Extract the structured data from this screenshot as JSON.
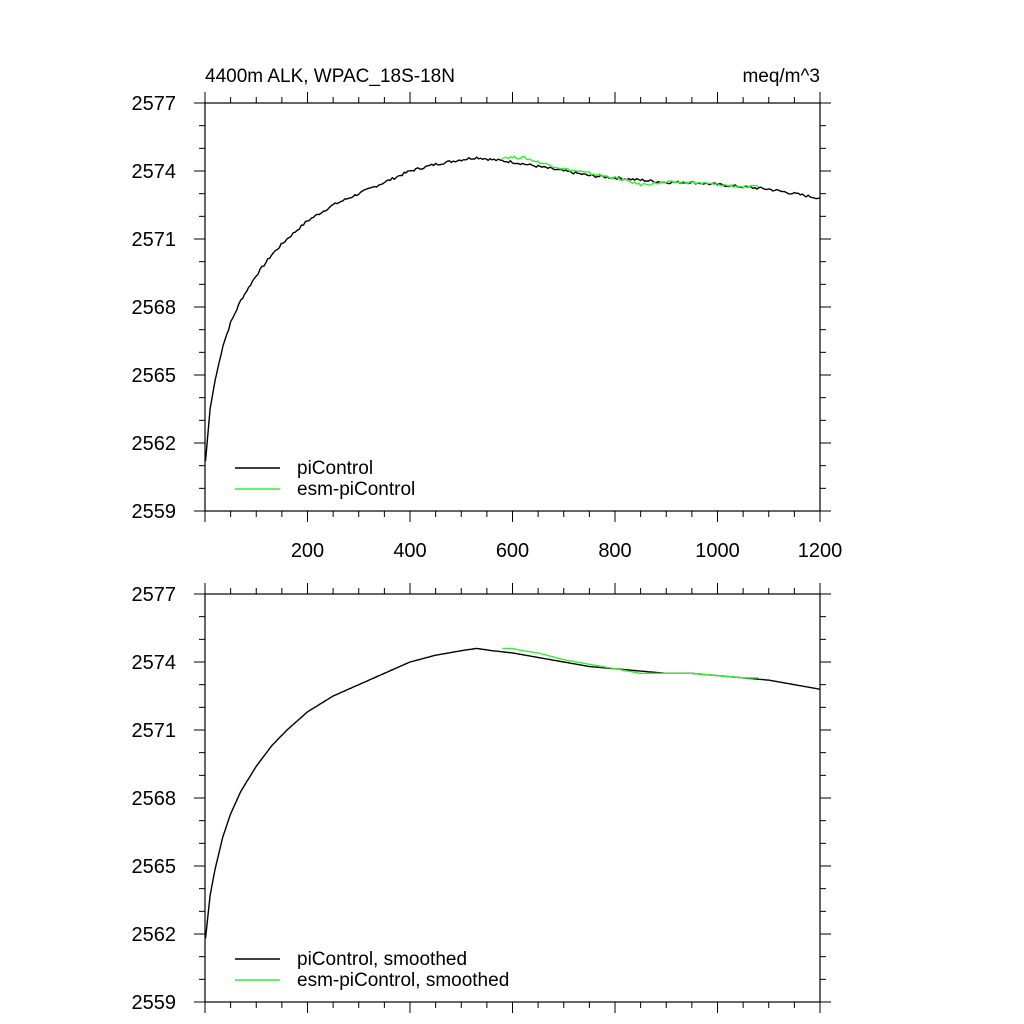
{
  "chart_data": [
    {
      "type": "line",
      "title": "4400m ALK, WPAC_18S-18N",
      "units": "meq/m^3",
      "xlim": [
        0,
        1200
      ],
      "ylim": [
        2559,
        2577
      ],
      "xticks": [
        "200",
        "400",
        "600",
        "800",
        "1000",
        "1200"
      ],
      "yticks": [
        "2559",
        "2562",
        "2565",
        "2568",
        "2571",
        "2574",
        "2577"
      ],
      "legend_position": "bottom-left",
      "series": [
        {
          "name": "piControl",
          "color": "#000000",
          "x": [
            1,
            10,
            20,
            35,
            50,
            70,
            100,
            130,
            160,
            200,
            250,
            300,
            350,
            400,
            450,
            500,
            530,
            560,
            600,
            650,
            700,
            750,
            800,
            850,
            900,
            950,
            1000,
            1050,
            1100,
            1150,
            1200
          ],
          "y": [
            2561.2,
            2563.5,
            2564.8,
            2566.3,
            2567.3,
            2568.3,
            2569.4,
            2570.3,
            2571.0,
            2571.8,
            2572.5,
            2573.0,
            2573.5,
            2574.0,
            2574.3,
            2574.5,
            2574.6,
            2574.5,
            2574.4,
            2574.2,
            2574.0,
            2573.8,
            2573.7,
            2573.6,
            2573.5,
            2573.5,
            2573.4,
            2573.3,
            2573.2,
            2573.0,
            2572.8
          ]
        },
        {
          "name": "esm-piControl",
          "color": "#33ee33",
          "x": [
            580,
            600,
            620,
            650,
            700,
            750,
            800,
            850,
            900,
            950,
            1000,
            1050,
            1080
          ],
          "y": [
            2574.6,
            2574.6,
            2574.6,
            2574.4,
            2574.1,
            2573.9,
            2573.7,
            2573.4,
            2573.5,
            2573.5,
            2573.4,
            2573.3,
            2573.3
          ]
        }
      ]
    },
    {
      "type": "line",
      "title": "",
      "units": "",
      "xlim": [
        0,
        1200
      ],
      "ylim": [
        2559,
        2577
      ],
      "xticks": [],
      "yticks": [
        "2559",
        "2562",
        "2565",
        "2568",
        "2571",
        "2574",
        "2577"
      ],
      "legend_position": "bottom-left",
      "series": [
        {
          "name": "piControl, smoothed",
          "color": "#000000",
          "x": [
            1,
            10,
            20,
            35,
            50,
            70,
            100,
            130,
            160,
            200,
            250,
            300,
            350,
            400,
            450,
            500,
            530,
            560,
            600,
            650,
            700,
            750,
            800,
            850,
            900,
            950,
            1000,
            1050,
            1100,
            1150,
            1200
          ],
          "y": [
            2561.8,
            2563.7,
            2564.9,
            2566.3,
            2567.3,
            2568.3,
            2569.4,
            2570.3,
            2571.0,
            2571.8,
            2572.5,
            2573.0,
            2573.5,
            2574.0,
            2574.3,
            2574.5,
            2574.6,
            2574.5,
            2574.4,
            2574.2,
            2574.0,
            2573.8,
            2573.7,
            2573.6,
            2573.5,
            2573.5,
            2573.4,
            2573.3,
            2573.2,
            2573.0,
            2572.8
          ]
        },
        {
          "name": "esm-piControl, smoothed",
          "color": "#33ee33",
          "x": [
            580,
            600,
            620,
            650,
            700,
            750,
            800,
            850,
            900,
            950,
            1000,
            1050,
            1080
          ],
          "y": [
            2574.6,
            2574.6,
            2574.5,
            2574.4,
            2574.1,
            2573.9,
            2573.7,
            2573.5,
            2573.5,
            2573.5,
            2573.4,
            2573.3,
            2573.3
          ]
        }
      ]
    }
  ]
}
